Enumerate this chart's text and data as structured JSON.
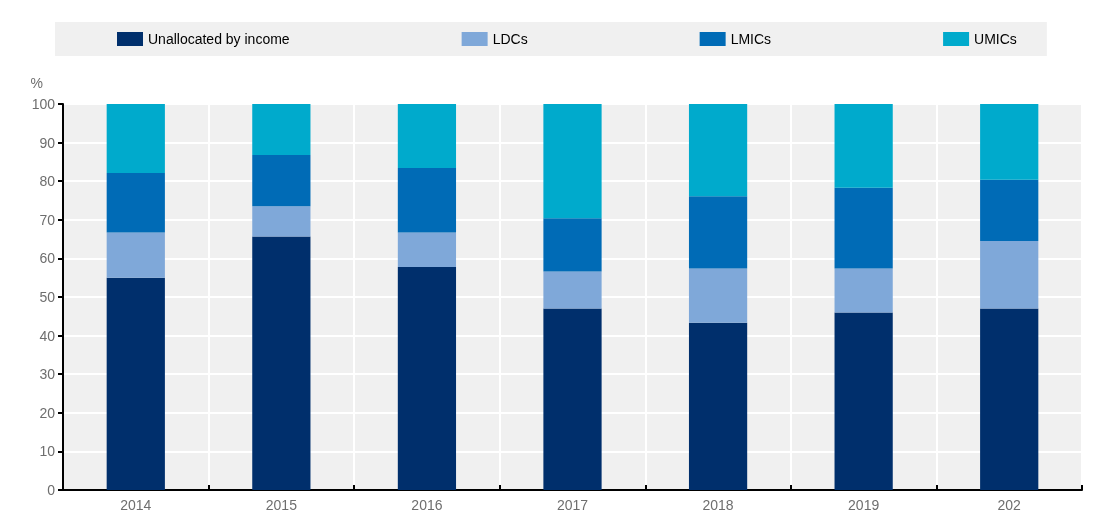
{
  "chart_data": {
    "type": "bar",
    "stacked": true,
    "ylabel": "%",
    "categories": [
      "2014",
      "2015",
      "2016",
      "2017",
      "2018",
      "2019",
      "202"
    ],
    "series": [
      {
        "name": "Unallocated by income",
        "color": "#002f6c",
        "values": [
          55,
          65.7,
          57.8,
          47,
          43.3,
          46,
          47
        ]
      },
      {
        "name": "LDCs",
        "color": "#7fa8d9",
        "values": [
          11.7,
          7.8,
          8.9,
          9.6,
          14.1,
          11.4,
          17.5
        ]
      },
      {
        "name": "LMICs",
        "color": "#006bb6",
        "values": [
          15.4,
          13.3,
          16.7,
          13.8,
          18.7,
          20.9,
          15.9
        ]
      },
      {
        "name": "UMICs",
        "color": "#00aacc",
        "values": [
          17.9,
          13.2,
          16.6,
          29.6,
          23.9,
          21.7,
          19.6
        ]
      }
    ],
    "ylim": [
      0,
      100
    ],
    "yticks": [
      0,
      10,
      20,
      30,
      40,
      50,
      60,
      70,
      80,
      90,
      100
    ],
    "grid": true,
    "legend": "top"
  }
}
